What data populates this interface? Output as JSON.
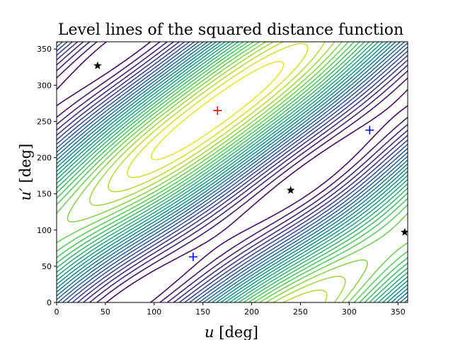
{
  "chart_data": {
    "type": "contour",
    "title": "Level lines of the squared distance function",
    "xlabel_var": "u",
    "ylabel_var": "u′",
    "unit_label": "[deg]",
    "xlim": [
      0,
      360
    ],
    "ylim": [
      0,
      360
    ],
    "xticks": [
      0,
      50,
      100,
      150,
      200,
      250,
      300,
      350
    ],
    "yticks": [
      0,
      50,
      100,
      150,
      200,
      250,
      300,
      350
    ],
    "grid": false,
    "colormap": [
      "#440154",
      "#3b528b",
      "#21918c",
      "#5ec962",
      "#fde725"
    ],
    "contour_center": {
      "u": 165,
      "u_prime": 265
    },
    "markers": [
      {
        "kind": "plus",
        "color": "#ff0000",
        "u": 165,
        "u_prime": 265
      },
      {
        "kind": "plus",
        "color": "#0000ff",
        "u": 140,
        "u_prime": 63
      },
      {
        "kind": "plus",
        "color": "#0000ff",
        "u": 321,
        "u_prime": 238
      },
      {
        "kind": "star",
        "color": "#000000",
        "u": 42,
        "u_prime": 327
      },
      {
        "kind": "star",
        "color": "#000000",
        "u": 240,
        "u_prime": 155
      },
      {
        "kind": "star",
        "color": "#000000",
        "u": 357,
        "u_prime": 97
      }
    ]
  }
}
